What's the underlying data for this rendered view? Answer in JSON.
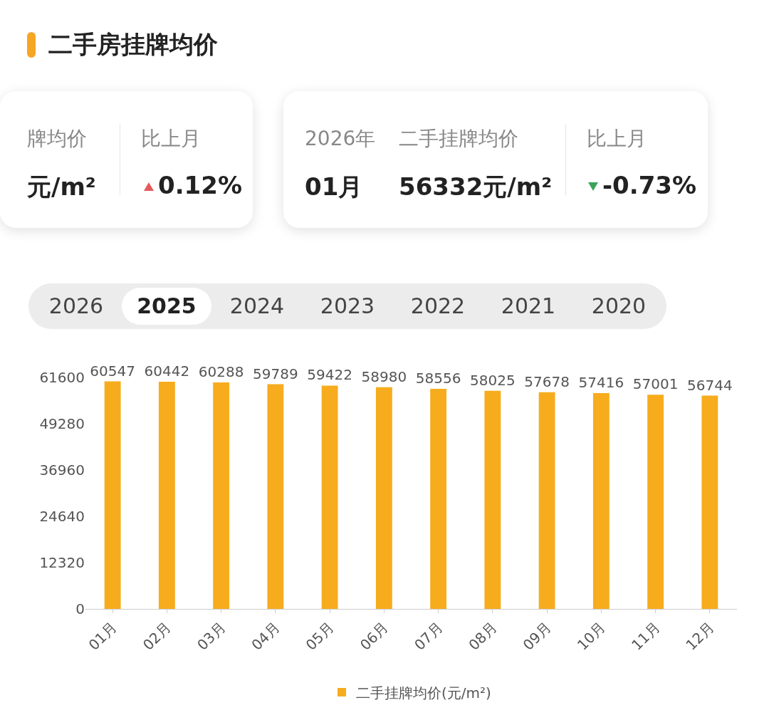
{
  "chart_data": {
    "type": "bar",
    "title": "二手房挂牌均价",
    "annotations": [
      "牌均价",
      "元/m²",
      "比上月",
      "0.12%",
      "2026年",
      "01月",
      "二手挂牌均价",
      "56332元/m²",
      "比上月",
      "-0.73%",
      "2026",
      "2025",
      "2024",
      "2023",
      "2022",
      "2021",
      "2020"
    ],
    "categories": [
      "01月",
      "02月",
      "03月",
      "04月",
      "05月",
      "06月",
      "07月",
      "08月",
      "09月",
      "10月",
      "11月",
      "12月"
    ],
    "series": [
      {
        "name": "二手挂牌均价(元/m²)",
        "color": "#f7ac1e",
        "values": [
          60547,
          60442,
          60288,
          59789,
          59422,
          58980,
          58556,
          58025,
          57678,
          57416,
          57001,
          56744
        ]
      }
    ],
    "ylim": [
      0,
      61600
    ],
    "yticks": [
      0,
      12320,
      24640,
      36960,
      49280,
      61600
    ],
    "data_labels": true,
    "legend": "bottom"
  }
}
